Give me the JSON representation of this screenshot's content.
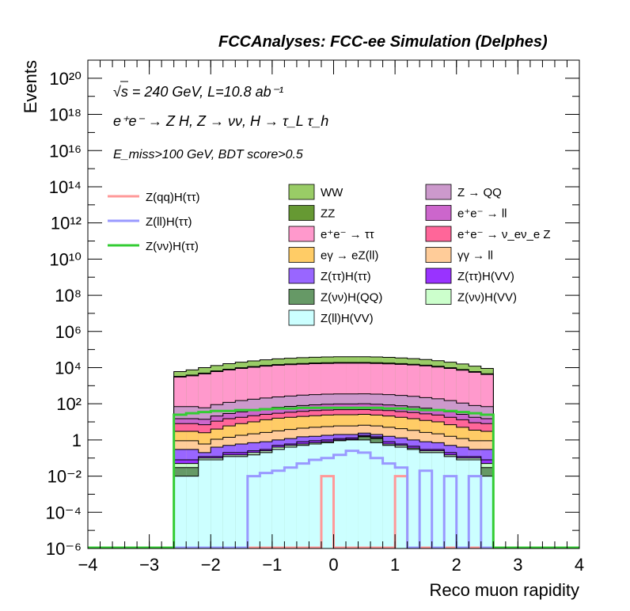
{
  "figure": {
    "title": "FCCAnalyses: FCC-ee Simulation (Delphes)",
    "energy": "√s = 240 GeV, L=10.8 ab⁻¹",
    "process": "e⁺e⁻ → Z H, Z → νν, H → τ_L τ_h",
    "cuts": "E_miss>100 GeV, BDT score>0.5"
  },
  "chart_data": {
    "type": "area",
    "title": "FCCAnalyses: FCC-ee Simulation (Delphes)",
    "xlabel": "Reco muon rapidity",
    "ylabel": "Events",
    "xlim": [
      -4,
      4
    ],
    "ylim": [
      1e-06,
      1e+21
    ],
    "yscale": "log",
    "stacked": true,
    "grid": false,
    "legend_position": "top-center",
    "x_ticks": [
      "-4",
      "-3",
      "-2",
      "-1",
      "0",
      "1",
      "2",
      "3",
      "4"
    ],
    "y_ticks": [
      "10⁻⁶",
      "10⁻⁴",
      "10⁻²",
      "1",
      "10²",
      "10⁴",
      "10⁶",
      "10⁸",
      "10¹⁰",
      "10¹²",
      "10¹⁴",
      "10¹⁶",
      "10¹⁸",
      "10²⁰"
    ],
    "bin_edges": [
      -2.6,
      -2.4,
      -2.2,
      -2.0,
      -1.8,
      -1.6,
      -1.4,
      -1.2,
      -1.0,
      -0.8,
      -0.6,
      -0.4,
      -0.2,
      0.0,
      0.2,
      0.4,
      0.6,
      0.8,
      1.0,
      1.2,
      1.4,
      1.6,
      1.8,
      2.0,
      2.2,
      2.4,
      2.6
    ],
    "stack_totals": [
      {
        "name": "Z(ll)H(VV)",
        "color": "#ccffff",
        "values": [
          0.01,
          0.01,
          0.08,
          0.08,
          0.12,
          0.12,
          0.15,
          0.2,
          0.3,
          0.4,
          0.5,
          0.6,
          0.7,
          0.9,
          1.0,
          1.0,
          0.7,
          0.5,
          0.4,
          0.3,
          0.2,
          0.2,
          0.12,
          0.08,
          0.08,
          0.01
        ]
      },
      {
        "name": "Z(νν)H(QQ)",
        "color": "#669966",
        "values": [
          0.03,
          0.03,
          0.08,
          0.08,
          0.12,
          0.12,
          0.15,
          0.2,
          0.3,
          0.4,
          0.5,
          0.6,
          0.7,
          0.9,
          1.0,
          1.5,
          1.2,
          0.5,
          0.4,
          0.3,
          0.2,
          0.2,
          0.12,
          0.08,
          0.08,
          0.03
        ]
      },
      {
        "name": "Z(νν)H(VV)",
        "color": "#ccffcc",
        "values": [
          0.05,
          0.05,
          0.1,
          0.1,
          0.15,
          0.15,
          0.2,
          0.25,
          0.4,
          0.5,
          0.6,
          0.7,
          0.8,
          1.0,
          1.1,
          1.6,
          1.3,
          0.6,
          0.5,
          0.35,
          0.25,
          0.25,
          0.15,
          0.1,
          0.1,
          0.05
        ]
      },
      {
        "name": "Z(ττ)H(VV)",
        "color": "#9933ff",
        "values": [
          0.08,
          0.08,
          0.12,
          0.12,
          0.2,
          0.2,
          0.25,
          0.3,
          0.5,
          0.6,
          0.8,
          0.9,
          1.0,
          1.2,
          1.3,
          1.8,
          1.5,
          0.8,
          0.6,
          0.45,
          0.3,
          0.3,
          0.2,
          0.12,
          0.12,
          0.08
        ]
      },
      {
        "name": "Z(ττ)H(ττ)",
        "color": "#9966ff",
        "values": [
          0.3,
          0.3,
          0.2,
          0.4,
          0.5,
          0.6,
          0.7,
          0.8,
          1.0,
          1.2,
          1.5,
          1.6,
          1.8,
          2.0,
          2.0,
          2.4,
          2.0,
          1.6,
          1.3,
          1.0,
          0.8,
          0.7,
          0.5,
          0.4,
          0.3,
          0.3
        ]
      },
      {
        "name": "γγ → ll",
        "color": "#ffcc99",
        "values": [
          0.9,
          0.9,
          0.6,
          1.1,
          1.4,
          1.8,
          2.2,
          2.6,
          3.2,
          3.8,
          4.5,
          5.0,
          5.5,
          6.0,
          6.0,
          6.5,
          6.0,
          5.0,
          4.2,
          3.4,
          2.6,
          2.2,
          1.6,
          1.2,
          0.9,
          0.9
        ]
      },
      {
        "name": "eγ → eZ(ll)",
        "color": "#ffcc66",
        "values": [
          3,
          3,
          2.5,
          4,
          6,
          8,
          10,
          13,
          16,
          18,
          20,
          22,
          24,
          25,
          25,
          26,
          24,
          21,
          18,
          15,
          12,
          10,
          7,
          5,
          3.5,
          3
        ]
      },
      {
        "name": "e⁺e⁻ → ν_eν_e Z",
        "color": "#ff6699",
        "values": [
          8,
          8,
          7,
          11,
          15,
          18,
          22,
          26,
          30,
          34,
          38,
          42,
          45,
          47,
          47,
          48,
          45,
          42,
          37,
          33,
          28,
          24,
          18,
          13,
          9,
          8
        ]
      },
      {
        "name": "e⁺e⁻ → ll",
        "color": "#cc66cc",
        "values": [
          15,
          15,
          14,
          21,
          29,
          36,
          45,
          54,
          64,
          72,
          80,
          88,
          94,
          98,
          98,
          100,
          94,
          87,
          78,
          68,
          57,
          48,
          36,
          26,
          18,
          15
        ]
      },
      {
        "name": "Z → QQ",
        "color": "#cc99cc",
        "values": [
          70,
          70,
          60,
          90,
          120,
          150,
          180,
          210,
          240,
          270,
          300,
          320,
          340,
          350,
          350,
          355,
          340,
          320,
          290,
          260,
          220,
          190,
          150,
          110,
          80,
          70
        ]
      },
      {
        "name": "e⁺e⁻ → ττ",
        "color": "#ff99cc",
        "values": [
          3000,
          3500,
          4500,
          6000,
          7500,
          9000,
          10500,
          12000,
          13500,
          14500,
          15500,
          16500,
          17000,
          17500,
          17500,
          17500,
          17000,
          16200,
          15200,
          14000,
          12500,
          10800,
          9000,
          7200,
          5500,
          4200
        ]
      },
      {
        "name": "ZZ",
        "color": "#669933",
        "values": [
          3300,
          3900,
          5000,
          6600,
          8200,
          9900,
          11500,
          13200,
          14800,
          15900,
          17000,
          18100,
          18700,
          19200,
          19200,
          19200,
          18700,
          17800,
          16700,
          15400,
          13700,
          11900,
          9900,
          7900,
          6000,
          4600
        ]
      },
      {
        "name": "WW",
        "color": "#99cc66",
        "values": [
          6000,
          7500,
          10000,
          13000,
          16500,
          20000,
          23500,
          27000,
          30500,
          33000,
          35500,
          37500,
          39000,
          40000,
          40000,
          40000,
          39000,
          37000,
          34500,
          31500,
          28000,
          24000,
          20000,
          16000,
          12000,
          9000
        ]
      }
    ],
    "signal_lines": [
      {
        "name": "Z(qq)H(ττ)",
        "color": "#ff9999",
        "values": [
          1e-06,
          1e-06,
          1e-06,
          1e-06,
          1e-06,
          1e-06,
          1e-06,
          1e-06,
          1e-06,
          1e-06,
          1e-06,
          1e-06,
          0.01,
          1e-06,
          1e-06,
          1e-06,
          1e-06,
          1e-06,
          0.01,
          1e-06,
          1e-06,
          1e-06,
          1e-06,
          1e-06,
          1e-06,
          1e-06
        ]
      },
      {
        "name": "Z(ll)H(ττ)",
        "color": "#9999ff",
        "values": [
          1e-06,
          1e-06,
          1e-06,
          1e-06,
          1e-06,
          1e-06,
          0.01,
          0.015,
          0.02,
          0.03,
          0.05,
          0.08,
          0.1,
          0.15,
          0.25,
          0.2,
          0.1,
          0.05,
          0.03,
          1e-06,
          0.02,
          1e-06,
          0.01,
          1e-06,
          0.01,
          1e-06
        ]
      },
      {
        "name": "Z(νν)H(ττ)",
        "color": "#33cc33",
        "values": [
          25,
          30,
          35,
          40,
          40,
          45,
          45,
          50,
          55,
          55,
          60,
          60,
          60,
          60,
          60,
          60,
          60,
          55,
          55,
          50,
          45,
          45,
          40,
          35,
          30,
          25
        ]
      }
    ]
  }
}
